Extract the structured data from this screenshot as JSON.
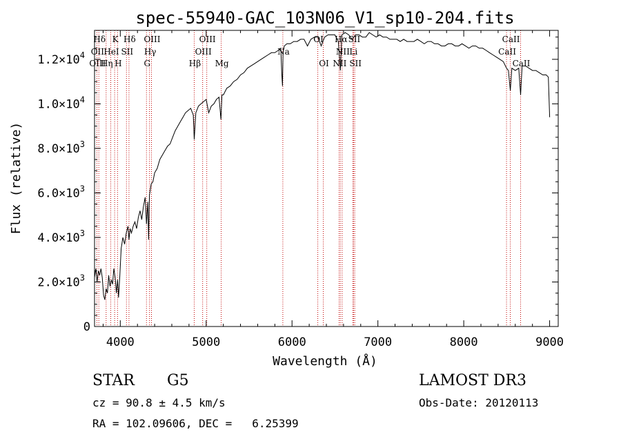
{
  "chart_data": {
    "type": "line",
    "title": "spec-55940-GAC_103N06_V1_sp10-204.fits",
    "xlabel": "Wavelength (Å)",
    "ylabel": "Flux (relative)",
    "xlim": [
      3700,
      9100
    ],
    "ylim": [
      0,
      13300
    ],
    "x_ticks": [
      {
        "value": 4000,
        "label": "4000"
      },
      {
        "value": 5000,
        "label": "5000"
      },
      {
        "value": 6000,
        "label": "6000"
      },
      {
        "value": 7000,
        "label": "7000"
      },
      {
        "value": 8000,
        "label": "8000"
      },
      {
        "value": 9000,
        "label": "9000"
      }
    ],
    "y_ticks": [
      {
        "value": 0,
        "mant": "0",
        "exp": ""
      },
      {
        "value": 2000,
        "mant": "2.0×10",
        "exp": "3"
      },
      {
        "value": 4000,
        "mant": "4.0×10",
        "exp": "3"
      },
      {
        "value": 6000,
        "mant": "6.0×10",
        "exp": "3"
      },
      {
        "value": 8000,
        "mant": "8.0×10",
        "exp": "3"
      },
      {
        "value": 10000,
        "mant": "1.0×10",
        "exp": "4"
      },
      {
        "value": 12000,
        "mant": "1.2×10",
        "exp": "4"
      }
    ],
    "series": [
      {
        "name": "flux",
        "x": [
          3700,
          3715,
          3730,
          3745,
          3760,
          3775,
          3790,
          3805,
          3820,
          3835,
          3850,
          3865,
          3880,
          3895,
          3910,
          3925,
          3940,
          3955,
          3968,
          3980,
          3995,
          4010,
          4030,
          4050,
          4070,
          4090,
          4101,
          4115,
          4130,
          4150,
          4170,
          4190,
          4210,
          4230,
          4250,
          4270,
          4290,
          4305,
          4320,
          4330,
          4340,
          4360,
          4380,
          4400,
          4430,
          4460,
          4490,
          4520,
          4550,
          4580,
          4610,
          4640,
          4670,
          4700,
          4730,
          4760,
          4790,
          4820,
          4850,
          4861,
          4880,
          4910,
          4940,
          4970,
          5000,
          5030,
          5060,
          5090,
          5120,
          5150,
          5172,
          5184,
          5200,
          5240,
          5280,
          5320,
          5360,
          5400,
          5440,
          5480,
          5520,
          5560,
          5600,
          5640,
          5680,
          5720,
          5760,
          5800,
          5840,
          5870,
          5880,
          5889,
          5895,
          5910,
          5940,
          5980,
          6020,
          6060,
          6100,
          6140,
          6180,
          6220,
          6260,
          6300,
          6340,
          6380,
          6420,
          6460,
          6500,
          6540,
          6563,
          6580,
          6620,
          6660,
          6700,
          6740,
          6780,
          6820,
          6860,
          6900,
          6940,
          6980,
          7020,
          7060,
          7100,
          7140,
          7180,
          7220,
          7260,
          7300,
          7340,
          7380,
          7420,
          7460,
          7500,
          7540,
          7580,
          7620,
          7660,
          7700,
          7740,
          7780,
          7820,
          7860,
          7900,
          7940,
          7980,
          8020,
          8060,
          8100,
          8140,
          8180,
          8220,
          8260,
          8300,
          8340,
          8380,
          8420,
          8460,
          8498,
          8520,
          8542,
          8560,
          8600,
          8640,
          8662,
          8680,
          8720,
          8760,
          8800,
          8840,
          8880,
          8920,
          8960,
          8985,
          9000
        ],
        "y": [
          2200,
          2600,
          2000,
          2500,
          2300,
          2600,
          2200,
          1400,
          1200,
          1700,
          1500,
          2300,
          1800,
          2100,
          1900,
          2600,
          2200,
          1500,
          2100,
          1300,
          2300,
          3500,
          4000,
          3700,
          4200,
          4500,
          3900,
          4400,
          4200,
          4500,
          4700,
          4400,
          4900,
          5200,
          4800,
          5400,
          5800,
          4600,
          5600,
          3900,
          5900,
          6400,
          6500,
          6900,
          7100,
          7500,
          7700,
          7900,
          8100,
          8200,
          8500,
          8800,
          9000,
          9200,
          9400,
          9600,
          9700,
          9800,
          9500,
          8400,
          9600,
          9900,
          10000,
          10100,
          10200,
          9600,
          9900,
          10000,
          10200,
          10300,
          9300,
          10400,
          10400,
          10700,
          10800,
          11000,
          11100,
          11300,
          11400,
          11600,
          11700,
          11800,
          11900,
          12000,
          12100,
          12200,
          12300,
          12300,
          12400,
          12500,
          11400,
          10800,
          12300,
          12600,
          12700,
          12700,
          12800,
          12800,
          12900,
          12900,
          12600,
          12900,
          13000,
          13000,
          12600,
          13000,
          13100,
          13100,
          13100,
          12800,
          11500,
          13100,
          13200,
          13100,
          12900,
          13100,
          13100,
          13000,
          13000,
          13200,
          13100,
          13000,
          13100,
          13000,
          13000,
          12900,
          12900,
          12900,
          12800,
          12900,
          12800,
          12800,
          12800,
          12900,
          12800,
          12700,
          12800,
          12800,
          12700,
          12700,
          12600,
          12600,
          12700,
          12700,
          12600,
          12600,
          12700,
          12600,
          12500,
          12600,
          12600,
          12500,
          12500,
          12400,
          12300,
          12200,
          12100,
          12000,
          11900,
          11600,
          11500,
          10600,
          11600,
          11500,
          11600,
          10400,
          11700,
          11700,
          11600,
          11500,
          11500,
          11400,
          11300,
          11300,
          11200,
          9400
        ]
      }
    ],
    "spectral_lines": [
      {
        "label": "Hδ",
        "wl": 3750,
        "row": 0
      },
      {
        "label": "OII",
        "wl": 3727,
        "row": 1
      },
      {
        "label": "OIII",
        "wl": 3727,
        "row": 2
      },
      {
        "label": "K",
        "wl": 3934,
        "row": 0
      },
      {
        "label": "HeI",
        "wl": 3889,
        "row": 1
      },
      {
        "label": "Hη",
        "wl": 3835,
        "row": 2
      },
      {
        "label": "SII",
        "wl": 4072,
        "row": 1
      },
      {
        "label": "H",
        "wl": 3968,
        "row": 2
      },
      {
        "label": "Hδ",
        "wl": 4101,
        "row": 0
      },
      {
        "label": "OIII",
        "wl": 4363,
        "row": 0
      },
      {
        "label": "Hγ",
        "wl": 4340,
        "row": 1
      },
      {
        "label": "G",
        "wl": 4305,
        "row": 2
      },
      {
        "label": "OIII",
        "wl": 5007,
        "row": 0
      },
      {
        "label": "OIII",
        "wl": 4959,
        "row": 1
      },
      {
        "label": "Hβ",
        "wl": 4861,
        "row": 2
      },
      {
        "label": "Mg",
        "wl": 5175,
        "row": 2
      },
      {
        "label": "Na",
        "wl": 5893,
        "row": 1
      },
      {
        "label": "OI",
        "wl": 6300,
        "row": 0
      },
      {
        "label": "OI",
        "wl": 6364,
        "row": 2
      },
      {
        "label": "Hα",
        "wl": 6563,
        "row": 0
      },
      {
        "label": "SII",
        "wl": 6717,
        "row": 0
      },
      {
        "label": "NII",
        "wl": 6584,
        "row": 1
      },
      {
        "label": "Li",
        "wl": 6708,
        "row": 1
      },
      {
        "label": "NII",
        "wl": 6548,
        "row": 2
      },
      {
        "label": "SII",
        "wl": 6731,
        "row": 2
      },
      {
        "label": "CaII",
        "wl": 8542,
        "row": 0
      },
      {
        "label": "CaII",
        "wl": 8498,
        "row": 1
      },
      {
        "label": "CaII",
        "wl": 8662,
        "row": 2
      }
    ]
  },
  "info": {
    "class_label": "STAR",
    "subclass": "G5",
    "survey": "LAMOST DR3",
    "redshift": "cz = 90.8 ± 4.5 km/s",
    "obs_date": "Obs-Date: 20120113",
    "coords": "RA = 102.09606, DEC =   6.25399"
  }
}
